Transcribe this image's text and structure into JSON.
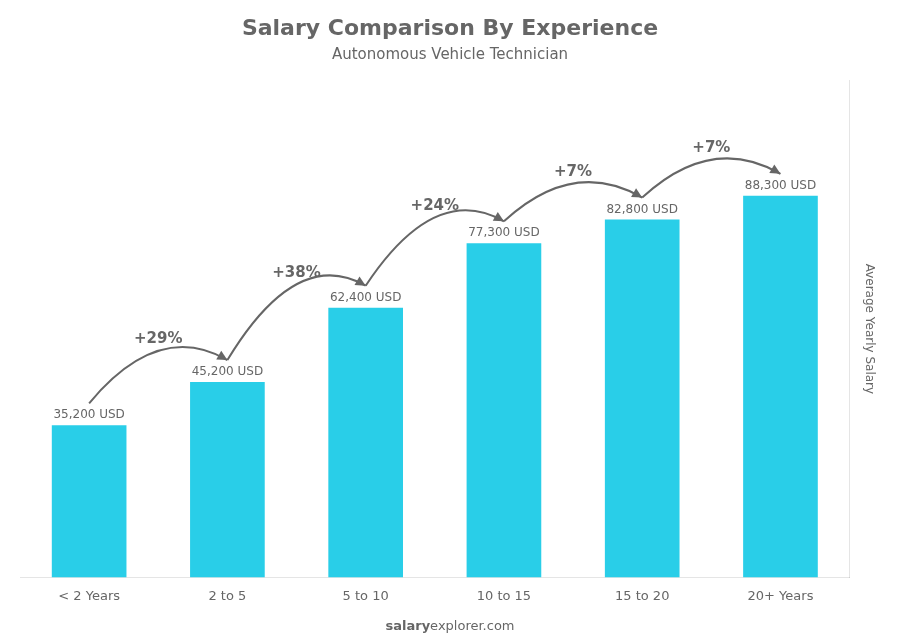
{
  "chart_data": {
    "type": "bar",
    "title": "Salary Comparison By Experience",
    "subtitle": "Autonomous Vehicle Technician",
    "categories": [
      "< 2 Years",
      "2 to 5",
      "5 to 10",
      "10 to 15",
      "15 to 20",
      "20+ Years"
    ],
    "values": [
      35200,
      45200,
      62400,
      77300,
      82800,
      88300
    ],
    "value_labels": [
      "35,200 USD",
      "45,200 USD",
      "62,400 USD",
      "77,300 USD",
      "82,800 USD",
      "88,300 USD"
    ],
    "data_labels": true,
    "annotations": [
      "+29%",
      "+38%",
      "+24%",
      "+7%",
      "+7%"
    ],
    "color": "#29cee8",
    "ylabel": "Average Yearly Salary",
    "footer": [
      "salary",
      "explorer.com"
    ],
    "ylim": [
      0,
      115000
    ],
    "tick_labels": "x",
    "grid": false
  }
}
